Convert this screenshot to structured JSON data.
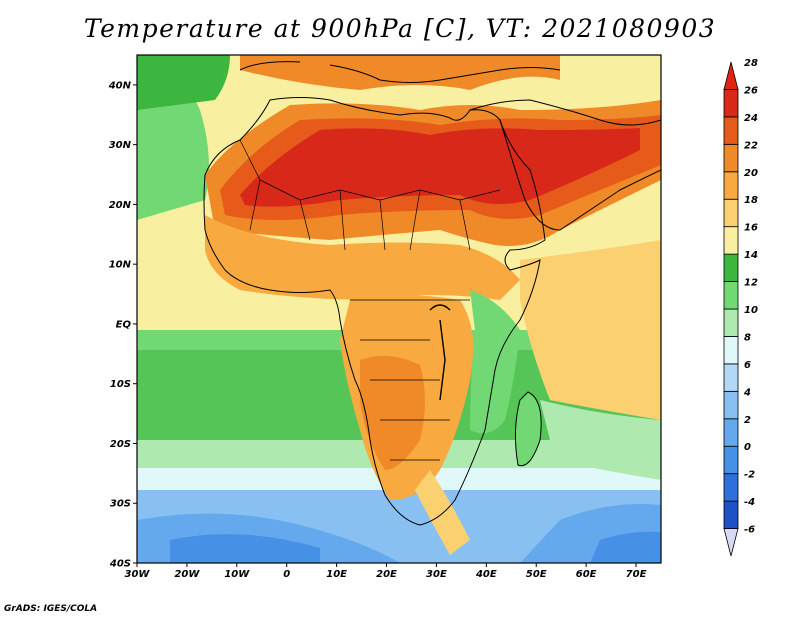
{
  "title": "Temperature at 900hPa [C], VT: 2021080903",
  "credit": "GrADS: IGES/COLA",
  "map": {
    "lat_range": [
      -40,
      45
    ],
    "lon_range": [
      -30,
      75
    ],
    "lat_labels": [
      "40N",
      "30N",
      "20N",
      "10N",
      "EQ",
      "10S",
      "20S",
      "30S",
      "40S"
    ],
    "lon_labels": [
      "30W",
      "20W",
      "10W",
      "0",
      "10E",
      "20E",
      "30E",
      "40E",
      "50E",
      "60E",
      "70E"
    ]
  },
  "colorbar": {
    "levels": [
      "-6",
      "-4",
      "-2",
      "0",
      "2",
      "4",
      "6",
      "8",
      "10",
      "12",
      "14",
      "16",
      "18",
      "20",
      "22",
      "24",
      "26",
      "28"
    ],
    "colors": [
      "#202a80",
      "#1e50c8",
      "#2e6fdc",
      "#4690e6",
      "#64a8ee",
      "#88c0f2",
      "#b2d8f6",
      "#e0f8f8",
      "#aeeab0",
      "#72d874",
      "#3cb63e",
      "#f8f0a0",
      "#fad070",
      "#f8aa40",
      "#f08a28",
      "#e65a1a",
      "#d8281a",
      "#e02410"
    ]
  },
  "chart_data": {
    "type": "heatmap",
    "title": "Temperature at 900hPa [C], VT: 2021080903",
    "xlabel": "",
    "ylabel": "",
    "x_ticks": [
      "30W",
      "20W",
      "10W",
      "0",
      "10E",
      "20E",
      "30E",
      "40E",
      "50E",
      "60E",
      "70E"
    ],
    "y_ticks": [
      "40N",
      "30N",
      "20N",
      "10N",
      "EQ",
      "10S",
      "20S",
      "30S",
      "40S"
    ],
    "colorbar_levels": [
      -6,
      -4,
      -2,
      0,
      2,
      4,
      6,
      8,
      10,
      12,
      14,
      16,
      18,
      20,
      22,
      24,
      26,
      28
    ],
    "approximate_regions": [
      {
        "region": "Sahara / Arabian Peninsula",
        "value": 28
      },
      {
        "region": "Sahel",
        "value": 24
      },
      {
        "region": "Gulf of Guinea",
        "value": 18
      },
      {
        "region": "Central / Southern Africa interior",
        "value": 22
      },
      {
        "region": "South Atlantic near 25S",
        "value": 10
      },
      {
        "region": "Southern Ocean near 38S",
        "value": 0
      }
    ]
  }
}
